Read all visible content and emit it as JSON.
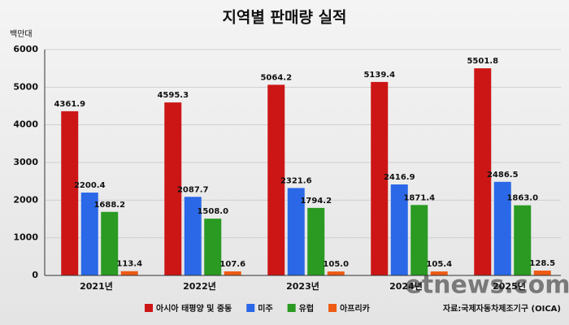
{
  "chart_data": {
    "type": "bar",
    "title": "지역별 판매량 실적",
    "y_unit": "백만대",
    "categories": [
      "2021년",
      "2022년",
      "2023년",
      "2024년",
      "2025년"
    ],
    "series": [
      {
        "name": "아시아 태평양 및 중동",
        "color": "#cc1616",
        "values": [
          4361.9,
          4595.3,
          5064.2,
          5139.4,
          5501.8
        ],
        "value_labels": [
          "4361.9",
          "4595.3",
          "5064.2",
          "5139.4",
          "5501.8"
        ]
      },
      {
        "name": "미주",
        "color": "#2a68e8",
        "values": [
          2200.4,
          2087.7,
          2321.6,
          2416.9,
          2486.5
        ],
        "value_labels": [
          "2200.4",
          "2087.7",
          "2321.6",
          "2416.9",
          "2486.5"
        ]
      },
      {
        "name": "유럽",
        "color": "#2a9a22",
        "values": [
          1688.2,
          1508.0,
          1794.2,
          1871.4,
          1863.0
        ],
        "value_labels": [
          "1688.2",
          "1508.0",
          "1794.2",
          "1871.4",
          "1863.0"
        ]
      },
      {
        "name": "아프리카",
        "color": "#ee5a14",
        "values": [
          113.4,
          107.6,
          105.0,
          105.4,
          128.5
        ],
        "value_labels": [
          "113.4",
          "107.6",
          "105.0",
          "105.4",
          "128.5"
        ]
      }
    ],
    "ylim": [
      0,
      6000
    ],
    "yticks": [
      0,
      1000,
      2000,
      3000,
      4000,
      5000,
      6000
    ],
    "grid": true,
    "legend": "bottom",
    "source": "자료:국제자동차제조기구 (OICA)",
    "watermark": "etnews.com"
  }
}
